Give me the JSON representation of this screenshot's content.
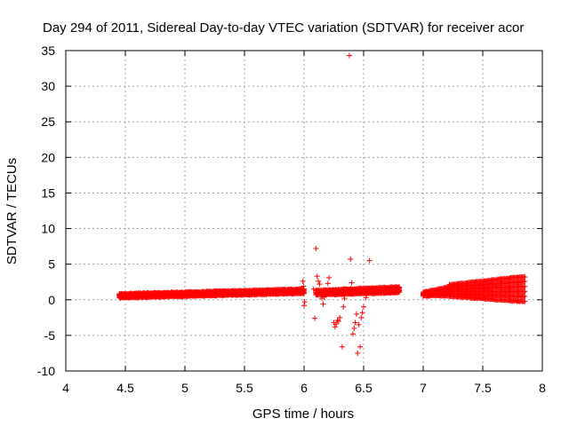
{
  "chart_data": {
    "type": "scatter",
    "title": "Day 294 of 2011, Sidereal Day-to-day VTEC variation (SDTVAR) for receiver acor",
    "xlabel": "GPS time / hours",
    "ylabel": "SDTVAR / TECUs",
    "xlim": [
      4,
      8
    ],
    "ylim": [
      -10,
      35
    ],
    "x_ticks": [
      4,
      4.5,
      5,
      5.5,
      6,
      6.5,
      7,
      7.5,
      8
    ],
    "x_tick_labels": [
      "4",
      "4.5",
      "5",
      "5.5",
      "6",
      "6.5",
      "7",
      "7.5",
      "8"
    ],
    "y_ticks": [
      -10,
      -5,
      0,
      5,
      10,
      15,
      20,
      25,
      30,
      35
    ],
    "y_tick_labels": [
      "-10",
      "-5",
      "0",
      "5",
      "10",
      "15",
      "20",
      "25",
      "30",
      "35"
    ],
    "grid": true,
    "marker": "+",
    "color": "#ff0000",
    "series": [
      {
        "name": "SDTVAR",
        "segments": [
          {
            "x_start": 4.45,
            "x_end": 6.0,
            "step": 0.00833,
            "center_start": 0.55,
            "center_end": 1.2,
            "spread_start": 0.55,
            "spread_end": 0.6
          },
          {
            "x_start": 6.1,
            "x_end": 6.8,
            "step": 0.00833,
            "center_start": 1.0,
            "center_end": 1.4,
            "spread_start": 0.6,
            "spread_end": 0.8
          },
          {
            "x_start": 7.0,
            "x_end": 7.22,
            "step": 0.00833,
            "center_start": 0.8,
            "center_end": 1.2,
            "spread_start": 0.5,
            "spread_end": 1.2
          },
          {
            "x_start": 7.22,
            "x_end": 7.85,
            "step": 0.00833,
            "center_start": 1.3,
            "center_end": 1.5,
            "spread_start": 1.6,
            "spread_end": 3.5
          }
        ],
        "points": [
          [
            5.99,
            2.6
          ],
          [
            5.995,
            1.9
          ],
          [
            6.0,
            1.5
          ],
          [
            6.0,
            -0.8
          ],
          [
            6.005,
            -0.3
          ],
          [
            6.08,
            1.5
          ],
          [
            6.09,
            -2.6
          ],
          [
            6.1,
            7.2
          ],
          [
            6.11,
            3.3
          ],
          [
            6.12,
            2.6
          ],
          [
            6.13,
            2.2
          ],
          [
            6.14,
            0.9
          ],
          [
            6.15,
            0.2
          ],
          [
            6.16,
            -0.6
          ],
          [
            6.17,
            0.4
          ],
          [
            6.2,
            2.3
          ],
          [
            6.21,
            3.1
          ],
          [
            6.22,
            1.1
          ],
          [
            6.25,
            -3.2
          ],
          [
            6.26,
            -3.8
          ],
          [
            6.27,
            -3.4
          ],
          [
            6.28,
            -2.9
          ],
          [
            6.29,
            -3.0
          ],
          [
            6.3,
            -2.5
          ],
          [
            6.32,
            -6.6
          ],
          [
            6.33,
            -1.0
          ],
          [
            6.34,
            0.2
          ],
          [
            6.35,
            1.5
          ],
          [
            6.38,
            34.3
          ],
          [
            6.39,
            5.7
          ],
          [
            6.4,
            2.4
          ],
          [
            6.41,
            -4.8
          ],
          [
            6.42,
            -4.0
          ],
          [
            6.43,
            -3.2
          ],
          [
            6.44,
            -2.0
          ],
          [
            6.45,
            -7.5
          ],
          [
            6.46,
            -3.5
          ],
          [
            6.47,
            -6.6
          ],
          [
            6.48,
            -2.5
          ],
          [
            6.49,
            -1.8
          ],
          [
            6.5,
            -1.0
          ],
          [
            6.52,
            0.3
          ],
          [
            6.55,
            5.5
          ]
        ]
      }
    ]
  }
}
